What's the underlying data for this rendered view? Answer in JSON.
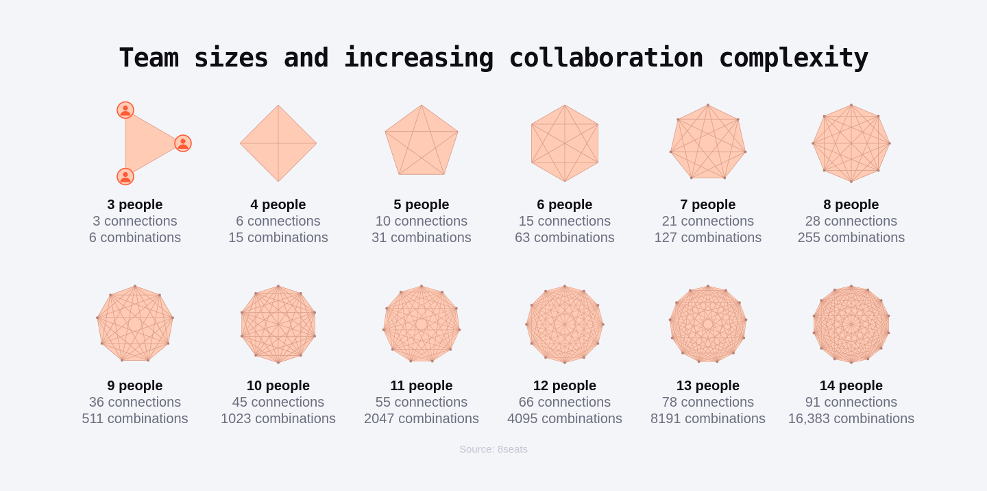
{
  "title": "Team sizes and increasing collaboration complexity",
  "source": "Source: 8seats",
  "colors": {
    "fill": "#ffcbb5",
    "line": "#d99b86",
    "vertex": "#b87f70",
    "accent": "#ff5a36"
  },
  "groups": [
    {
      "n": 3,
      "people": "3 people",
      "connections": "3 connections",
      "combinations": "6 combinations",
      "vertex_icon": "person-icon"
    },
    {
      "n": 4,
      "people": "4 people",
      "connections": "6 connections",
      "combinations": "15 combinations"
    },
    {
      "n": 5,
      "people": "5 people",
      "connections": "10 connections",
      "combinations": "31 combinations"
    },
    {
      "n": 6,
      "people": "6 people",
      "connections": "15 connections",
      "combinations": "63 combinations"
    },
    {
      "n": 7,
      "people": "7 people",
      "connections": "21 connections",
      "combinations": "127 combinations"
    },
    {
      "n": 8,
      "people": "8 people",
      "connections": "28 connections",
      "combinations": "255 combinations"
    },
    {
      "n": 9,
      "people": "9 people",
      "connections": "36 connections",
      "combinations": "511 combinations"
    },
    {
      "n": 10,
      "people": "10 people",
      "connections": "45 connections",
      "combinations": "1023 combinations"
    },
    {
      "n": 11,
      "people": "11 people",
      "connections": "55 connections",
      "combinations": "2047 combinations"
    },
    {
      "n": 12,
      "people": "12 people",
      "connections": "66 connections",
      "combinations": "4095 combinations"
    },
    {
      "n": 13,
      "people": "13 people",
      "connections": "78 connections",
      "combinations": "8191 combinations"
    },
    {
      "n": 14,
      "people": "14 people",
      "connections": "91 connections",
      "combinations": "16,383 combinations"
    }
  ]
}
